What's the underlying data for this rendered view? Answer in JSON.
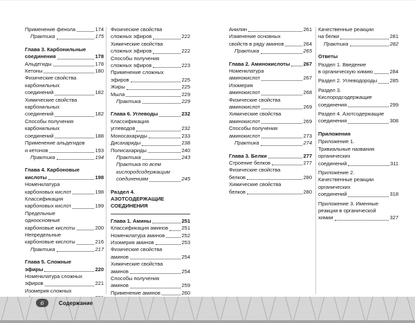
{
  "footer": {
    "page_number": "6",
    "label": "Содержание"
  },
  "colors": {
    "footer_band": "#d6d6d6",
    "pill": "#4c4c4c",
    "text": "#1b1b1b",
    "divider": "#c9c9c9"
  },
  "columns": [
    {
      "entries": [
        {
          "style": "normal",
          "lines": [
            "Применение фенола"
          ],
          "page": "174"
        },
        {
          "style": "practice",
          "lines": [
            "Практика"
          ],
          "page": "175"
        },
        {
          "style": "chapter",
          "gap": true,
          "lines": [
            "Глава 3. Карбонильные",
            "соединения"
          ],
          "page": "178"
        },
        {
          "style": "normal",
          "lines": [
            "Альдегиды"
          ],
          "page": "178"
        },
        {
          "style": "normal",
          "lines": [
            "Кетоны"
          ],
          "page": "180"
        },
        {
          "style": "normal",
          "lines": [
            "Физические свойства",
            "карбонильных",
            "соединений"
          ],
          "page": "182"
        },
        {
          "style": "normal",
          "lines": [
            "Химические свойства",
            "карбонильных",
            "соединений"
          ],
          "page": "182"
        },
        {
          "style": "normal",
          "lines": [
            "Способы получения",
            "карбонильных",
            "соединений"
          ],
          "page": "188"
        },
        {
          "style": "normal",
          "lines": [
            "Применение альдегидов",
            "и кетонов"
          ],
          "page": "193"
        },
        {
          "style": "practice",
          "lines": [
            "Практика"
          ],
          "page": "194"
        },
        {
          "style": "chapter",
          "gap": true,
          "lines": [
            "Глава 4. Карбоновые",
            "кислоты"
          ],
          "page": "198"
        },
        {
          "style": "normal",
          "lines": [
            "Номенклатура",
            "карбоновых кислот"
          ],
          "page": "198"
        },
        {
          "style": "normal",
          "lines": [
            "Классификация",
            "карбоновых кислот"
          ],
          "page": "199"
        },
        {
          "style": "normal",
          "lines": [
            "Предельные",
            "одноосновные",
            "карбоновые кислоты"
          ],
          "page": "200"
        },
        {
          "style": "normal",
          "lines": [
            "Непредельные",
            "карбоновые кислоты"
          ],
          "page": "216"
        },
        {
          "style": "practice",
          "lines": [
            "Практика"
          ],
          "page": "217"
        },
        {
          "style": "chapter",
          "gap": true,
          "lines": [
            "Глава 5. Сложные",
            "эфиры"
          ],
          "page": "220"
        },
        {
          "style": "normal",
          "lines": [
            "Номенклатура сложных",
            "эфиров"
          ],
          "page": "221"
        },
        {
          "style": "normal",
          "lines": [
            "Изомерия сложных",
            "эфиров"
          ],
          "page": "221"
        }
      ]
    },
    {
      "entries": [
        {
          "style": "normal",
          "lines": [
            "Физические свойства",
            "сложных эфиров"
          ],
          "page": "222"
        },
        {
          "style": "normal",
          "lines": [
            "Химические свойства",
            "сложных эфиров"
          ],
          "page": "222"
        },
        {
          "style": "normal",
          "lines": [
            "Способы получения",
            "сложных эфиров"
          ],
          "page": "223"
        },
        {
          "style": "normal",
          "lines": [
            "Применение сложных",
            "эфиров"
          ],
          "page": "225"
        },
        {
          "style": "normal",
          "lines": [
            "Жиры"
          ],
          "page": "225"
        },
        {
          "style": "normal",
          "lines": [
            "Мыла"
          ],
          "page": "229"
        },
        {
          "style": "practice",
          "lines": [
            "Практика"
          ],
          "page": "229"
        },
        {
          "style": "chapter",
          "gap": true,
          "lines": [
            "Глава 6. Углеводы"
          ],
          "page": "232"
        },
        {
          "style": "normal",
          "lines": [
            "Классификация",
            "углеводов"
          ],
          "page": "232"
        },
        {
          "style": "normal",
          "lines": [
            "Моносахариды"
          ],
          "page": "233"
        },
        {
          "style": "normal",
          "lines": [
            "Дисахариды"
          ],
          "page": "238"
        },
        {
          "style": "normal",
          "lines": [
            "Полисахариды"
          ],
          "page": "240"
        },
        {
          "style": "practice",
          "lines": [
            "Практика"
          ],
          "page": "243"
        },
        {
          "style": "practice",
          "lines": [
            "Практика по всем",
            "кислородсодержащим",
            "соединениям"
          ],
          "page": "245"
        },
        {
          "style": "section",
          "gap": true,
          "rule": true,
          "lines": [
            "Раздел 4.",
            "АЗОТСОДЕРЖАЩИЕ",
            "СОЕДИНЕНИЯ"
          ]
        },
        {
          "style": "chapter",
          "lines": [
            "Глава 1. Амины"
          ],
          "page": "251"
        },
        {
          "style": "normal",
          "lines": [
            "Классификация аминов"
          ],
          "page": "251"
        },
        {
          "style": "normal",
          "lines": [
            "Номенклатура аминов"
          ],
          "page": "252"
        },
        {
          "style": "normal",
          "lines": [
            "Изомерия аминов"
          ],
          "page": "253"
        },
        {
          "style": "normal",
          "lines": [
            "Физические свойства",
            "аминов"
          ],
          "page": "254"
        },
        {
          "style": "normal",
          "lines": [
            "Химические свойства",
            "аминов"
          ],
          "page": "254"
        },
        {
          "style": "normal",
          "lines": [
            "Способы получения",
            "аминов"
          ],
          "page": "259"
        },
        {
          "style": "normal",
          "lines": [
            "Применение аминов"
          ],
          "page": "260"
        }
      ]
    },
    {
      "entries": [
        {
          "style": "normal",
          "lines": [
            "Анилин"
          ],
          "page": "261"
        },
        {
          "style": "normal",
          "lines": [
            "Изменение основных",
            "свойств в ряду аминов"
          ],
          "page": "264"
        },
        {
          "style": "practice",
          "lines": [
            "Практика"
          ],
          "page": "265"
        },
        {
          "style": "chapter",
          "gap": true,
          "lines": [
            "Глава 2. Аминокислоты"
          ],
          "page": "267"
        },
        {
          "style": "normal",
          "lines": [
            "Номенклатура",
            "аминокислот"
          ],
          "page": "267"
        },
        {
          "style": "normal",
          "lines": [
            "Изомерия",
            "аминокислот"
          ],
          "page": "268"
        },
        {
          "style": "normal",
          "lines": [
            "Физические свойства",
            "аминокислот"
          ],
          "page": "269"
        },
        {
          "style": "normal",
          "lines": [
            "Химические свойства",
            "аминокислот"
          ],
          "page": "269"
        },
        {
          "style": "normal",
          "lines": [
            "Способы получения",
            "аминокислот"
          ],
          "page": "273"
        },
        {
          "style": "practice",
          "lines": [
            "Практика"
          ],
          "page": "274"
        },
        {
          "style": "chapter",
          "gap": true,
          "lines": [
            "Глава 3. Белки"
          ],
          "page": "277"
        },
        {
          "style": "normal",
          "lines": [
            "Строение белков"
          ],
          "page": "277"
        },
        {
          "style": "normal",
          "lines": [
            "Физические свойства",
            "белков"
          ],
          "page": "280"
        },
        {
          "style": "normal",
          "lines": [
            "Химические свойства",
            "белков"
          ],
          "page": "280"
        }
      ]
    },
    {
      "entries": [
        {
          "style": "normal",
          "lines": [
            "Качественные реакции",
            "на белки"
          ],
          "page": "281"
        },
        {
          "style": "practice",
          "lines": [
            "Практика"
          ],
          "page": "282"
        },
        {
          "style": "heading",
          "gap": true,
          "lines": [
            "Ответы"
          ]
        },
        {
          "style": "normal",
          "lines": [
            "Раздел 1. Введение",
            "в органическую химию"
          ],
          "page": "284"
        },
        {
          "style": "normal",
          "sgap": true,
          "lines": [
            "Раздел 2. Углеводороды"
          ],
          "page": "285"
        },
        {
          "style": "normal",
          "sgap": true,
          "lines": [
            "Раздел 3.",
            "Кислородсодержащие",
            "соединения"
          ],
          "page": "299"
        },
        {
          "style": "normal",
          "sgap": true,
          "lines": [
            "Раздел 4. Азотсодержащие",
            "соединения"
          ],
          "page": "308"
        },
        {
          "style": "heading",
          "gap": true,
          "lines": [
            "Приложения"
          ]
        },
        {
          "style": "normal",
          "lines": [
            "Приложение 1.",
            "Тривиальные названия",
            "органических",
            "соединений"
          ],
          "page": "311"
        },
        {
          "style": "normal",
          "sgap": true,
          "lines": [
            "Приложение 2.",
            "Качественные реакции",
            "органических",
            "соединений"
          ],
          "page": "318"
        },
        {
          "style": "normal",
          "sgap": true,
          "lines": [
            "Приложение 3. Именные",
            "реакции в органической",
            "химии"
          ],
          "page": "327"
        }
      ]
    }
  ]
}
